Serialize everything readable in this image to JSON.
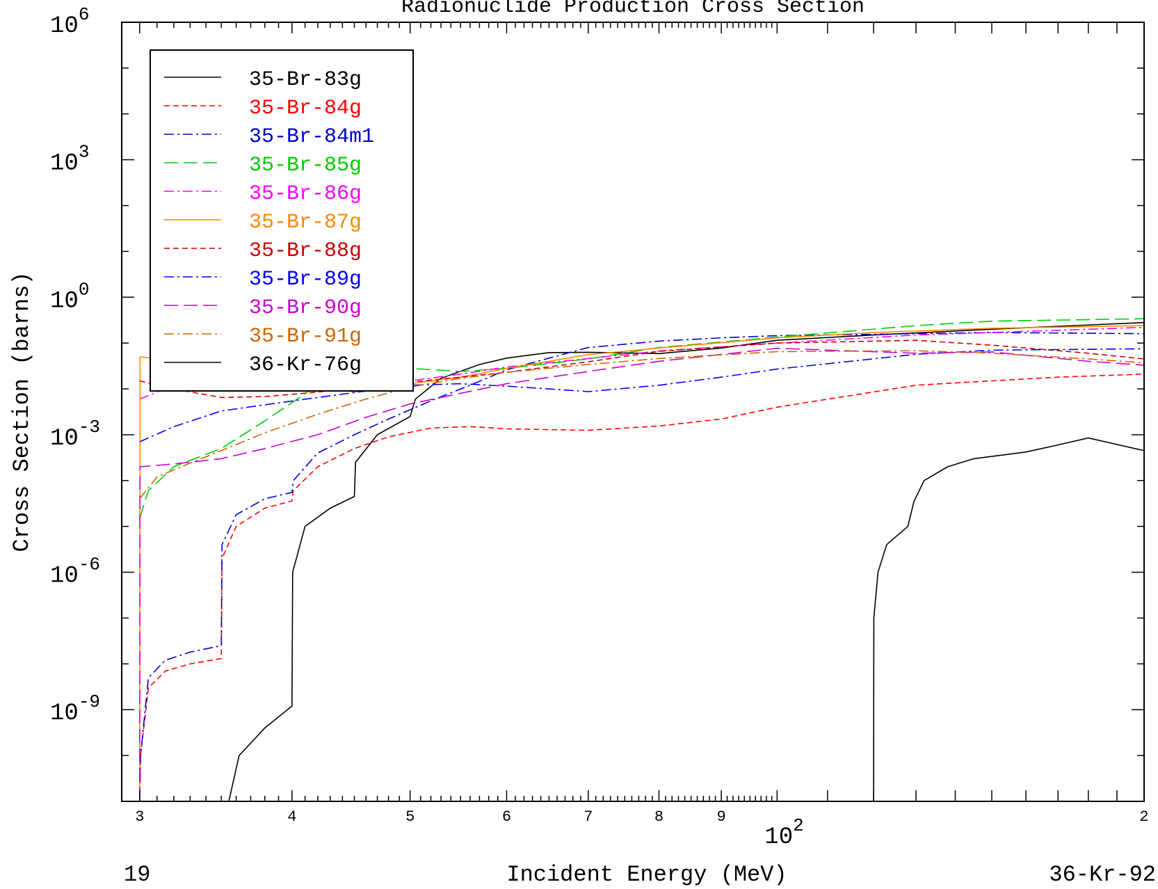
{
  "chart_data": {
    "type": "line",
    "title": "Radionuclide Production Cross Section",
    "xlabel": "Incident Energy (MeV)",
    "ylabel": "Cross Section (barns)",
    "x_scale": "log",
    "y_scale": "log",
    "xlim": [
      29,
      200
    ],
    "ylim": [
      1e-11,
      1000000.0
    ],
    "y_tick_bases": [
      "10",
      "10",
      "10",
      "10",
      "10",
      "10"
    ],
    "y_tick_exponents": [
      "-9",
      "-6",
      "-3",
      "0",
      "3",
      "6"
    ],
    "y_tick_values": [
      1e-09,
      1e-06,
      0.001,
      1,
      1000.0,
      1000000.0
    ],
    "x_ticks": [
      {
        "value": 30,
        "label": "3"
      },
      {
        "value": 40,
        "label": "4"
      },
      {
        "value": 50,
        "label": "5"
      },
      {
        "value": 60,
        "label": "6"
      },
      {
        "value": 70,
        "label": "7"
      },
      {
        "value": 80,
        "label": "8"
      },
      {
        "value": 90,
        "label": "9"
      },
      {
        "value": 200,
        "label": "2"
      }
    ],
    "x_decade_label": {
      "value": 100,
      "base": "10",
      "exponent": "2"
    },
    "footer_left": "19",
    "footer_right": "36-Kr-92",
    "legend_position": "top-left",
    "series": [
      {
        "name": "35-Br-83g",
        "color": "#000000",
        "dash": "solid",
        "points": [
          [
            35.5,
            1e-11
          ],
          [
            36.2,
            1e-10
          ],
          [
            38,
            4e-10
          ],
          [
            40,
            1.2e-09
          ],
          [
            40.05,
            1e-06
          ],
          [
            41,
            1e-05
          ],
          [
            43,
            2.5e-05
          ],
          [
            45,
            4.5e-05
          ],
          [
            45.1,
            0.00025
          ],
          [
            47,
            0.001
          ],
          [
            50,
            0.0025
          ],
          [
            50.5,
            0.006
          ],
          [
            53,
            0.017
          ],
          [
            57,
            0.034
          ],
          [
            60,
            0.047
          ],
          [
            65,
            0.062
          ],
          [
            70,
            0.063
          ],
          [
            80,
            0.059
          ],
          [
            90,
            0.078
          ],
          [
            100,
            0.115
          ],
          [
            120,
            0.15
          ],
          [
            150,
            0.2
          ],
          [
            200,
            0.28
          ]
        ]
      },
      {
        "name": "35-Br-84g",
        "color": "#ff0000",
        "dash": "short",
        "points": [
          [
            30,
            1e-11
          ],
          [
            30.05,
            1e-10
          ],
          [
            30.5,
            3e-09
          ],
          [
            31.5,
            7e-09
          ],
          [
            33,
            1e-08
          ],
          [
            35,
            1.3e-08
          ],
          [
            35.05,
            2e-06
          ],
          [
            36,
            1e-05
          ],
          [
            38,
            2.5e-05
          ],
          [
            40,
            3.6e-05
          ],
          [
            40.1,
            6e-05
          ],
          [
            42,
            0.0002
          ],
          [
            45,
            0.0005
          ],
          [
            48,
            0.0009
          ],
          [
            52,
            0.0014
          ],
          [
            56,
            0.0015
          ],
          [
            60,
            0.00135
          ],
          [
            70,
            0.00125
          ],
          [
            80,
            0.00155
          ],
          [
            90,
            0.0022
          ],
          [
            100,
            0.004
          ],
          [
            130,
            0.012
          ],
          [
            150,
            0.015
          ],
          [
            170,
            0.018
          ],
          [
            200,
            0.021
          ]
        ]
      },
      {
        "name": "35-Br-84m1",
        "color": "#0000cc",
        "dash": "dashdot",
        "points": [
          [
            30,
            1e-11
          ],
          [
            30.05,
            1e-10
          ],
          [
            30.5,
            5e-09
          ],
          [
            31.5,
            1.2e-08
          ],
          [
            33,
            1.8e-08
          ],
          [
            35,
            2.5e-08
          ],
          [
            35.05,
            4e-06
          ],
          [
            36,
            1.8e-05
          ],
          [
            38,
            4e-05
          ],
          [
            40,
            5.5e-05
          ],
          [
            40.1,
            0.0001
          ],
          [
            42,
            0.0004
          ],
          [
            45,
            0.001
          ],
          [
            48,
            0.0022
          ],
          [
            52,
            0.0055
          ],
          [
            56,
            0.012
          ],
          [
            60,
            0.026
          ],
          [
            65,
            0.047
          ],
          [
            70,
            0.08
          ],
          [
            80,
            0.11
          ],
          [
            90,
            0.13
          ],
          [
            100,
            0.145
          ],
          [
            130,
            0.16
          ],
          [
            150,
            0.17
          ],
          [
            200,
            0.16
          ]
        ]
      },
      {
        "name": "35-Br-85g",
        "color": "#00cc00",
        "dash": "longdash",
        "points": [
          [
            30,
            1.5e-05
          ],
          [
            30.5,
            6e-05
          ],
          [
            32,
            0.0002
          ],
          [
            33.5,
            0.00032
          ],
          [
            35,
            0.0005
          ],
          [
            38,
            0.002
          ],
          [
            42,
            0.012
          ],
          [
            45,
            0.022
          ],
          [
            50,
            0.028
          ],
          [
            55,
            0.024
          ],
          [
            60,
            0.028
          ],
          [
            70,
            0.045
          ],
          [
            80,
            0.08
          ],
          [
            100,
            0.135
          ],
          [
            130,
            0.24
          ],
          [
            150,
            0.3
          ],
          [
            200,
            0.34
          ]
        ]
      },
      {
        "name": "35-Br-86g",
        "color": "#ff00ff",
        "dash": "dashdot",
        "points": [
          [
            30,
            0.006
          ],
          [
            32,
            0.012
          ],
          [
            35,
            0.025
          ],
          [
            38,
            0.034
          ],
          [
            42,
            0.031
          ],
          [
            46,
            0.02
          ],
          [
            50,
            0.015
          ],
          [
            55,
            0.021
          ],
          [
            60,
            0.03
          ],
          [
            70,
            0.046
          ],
          [
            80,
            0.067
          ],
          [
            100,
            0.1
          ],
          [
            130,
            0.15
          ],
          [
            150,
            0.17
          ],
          [
            200,
            0.22
          ]
        ]
      },
      {
        "name": "35-Br-87g",
        "color": "#ff8800",
        "dash": "solid",
        "points": [
          [
            30,
            1e-11
          ],
          [
            30.02,
            0.05
          ],
          [
            34,
            0.035
          ],
          [
            37,
            0.025
          ],
          [
            40,
            0.015
          ],
          [
            45,
            0.0085
          ],
          [
            50,
            0.013
          ],
          [
            55,
            0.018
          ],
          [
            60,
            0.028
          ],
          [
            70,
            0.056
          ],
          [
            80,
            0.078
          ],
          [
            100,
            0.13
          ],
          [
            120,
            0.17
          ],
          [
            150,
            0.21
          ],
          [
            200,
            0.24
          ]
        ]
      },
      {
        "name": "35-Br-88g",
        "color": "#cc0000",
        "dash": "short",
        "points": [
          [
            30,
            0.015
          ],
          [
            32,
            0.01
          ],
          [
            35,
            0.0065
          ],
          [
            38,
            0.0068
          ],
          [
            42,
            0.0085
          ],
          [
            46,
            0.012
          ],
          [
            50,
            0.014
          ],
          [
            55,
            0.018
          ],
          [
            60,
            0.023
          ],
          [
            70,
            0.039
          ],
          [
            80,
            0.066
          ],
          [
            100,
            0.1
          ],
          [
            130,
            0.115
          ],
          [
            150,
            0.09
          ],
          [
            180,
            0.06
          ],
          [
            200,
            0.045
          ]
        ]
      },
      {
        "name": "35-Br-89g",
        "color": "#0000ff",
        "dash": "dashdot",
        "points": [
          [
            30,
            0.0007
          ],
          [
            32,
            0.0015
          ],
          [
            35,
            0.0033
          ],
          [
            38,
            0.0045
          ],
          [
            42,
            0.0065
          ],
          [
            46,
            0.009
          ],
          [
            50,
            0.012
          ],
          [
            55,
            0.013
          ],
          [
            60,
            0.0115
          ],
          [
            65,
            0.01
          ],
          [
            70,
            0.0087
          ],
          [
            80,
            0.012
          ],
          [
            90,
            0.018
          ],
          [
            100,
            0.027
          ],
          [
            130,
            0.057
          ],
          [
            150,
            0.07
          ],
          [
            200,
            0.075
          ]
        ]
      },
      {
        "name": "35-Br-90g",
        "color": "#cc00cc",
        "dash": "longdash",
        "points": [
          [
            30,
            1e-11
          ],
          [
            30.02,
            0.0002
          ],
          [
            32,
            0.00023
          ],
          [
            35,
            0.0003
          ],
          [
            38,
            0.0005
          ],
          [
            42,
            0.001
          ],
          [
            46,
            0.0024
          ],
          [
            50,
            0.0047
          ],
          [
            55,
            0.008
          ],
          [
            60,
            0.013
          ],
          [
            70,
            0.024
          ],
          [
            80,
            0.04
          ],
          [
            100,
            0.077
          ],
          [
            130,
            0.06
          ],
          [
            150,
            0.064
          ],
          [
            180,
            0.04
          ],
          [
            200,
            0.033
          ]
        ]
      },
      {
        "name": "35-Br-91g",
        "color": "#cc6600",
        "dash": "dashdot",
        "points": [
          [
            30,
            4e-05
          ],
          [
            31,
            0.00012
          ],
          [
            33,
            0.00024
          ],
          [
            35,
            0.00045
          ],
          [
            38,
            0.0011
          ],
          [
            42,
            0.0028
          ],
          [
            46,
            0.006
          ],
          [
            50,
            0.011
          ],
          [
            55,
            0.017
          ],
          [
            60,
            0.023
          ],
          [
            70,
            0.034
          ],
          [
            80,
            0.046
          ],
          [
            100,
            0.065
          ],
          [
            130,
            0.068
          ],
          [
            150,
            0.06
          ],
          [
            180,
            0.045
          ],
          [
            200,
            0.037
          ]
        ]
      },
      {
        "name": "36-Kr-76g",
        "color": "#000000",
        "dash": "solid",
        "points": [
          [
            120,
            1e-11
          ],
          [
            120.05,
            1e-07
          ],
          [
            121,
            1e-06
          ],
          [
            123,
            4e-06
          ],
          [
            128,
            1e-05
          ],
          [
            129.5,
            3.5e-05
          ],
          [
            132,
            0.0001
          ],
          [
            138,
            0.0002
          ],
          [
            145,
            0.0003
          ],
          [
            160,
            0.00042
          ],
          [
            170,
            0.0006
          ],
          [
            180,
            0.00085
          ],
          [
            200,
            0.00045
          ]
        ]
      }
    ]
  }
}
